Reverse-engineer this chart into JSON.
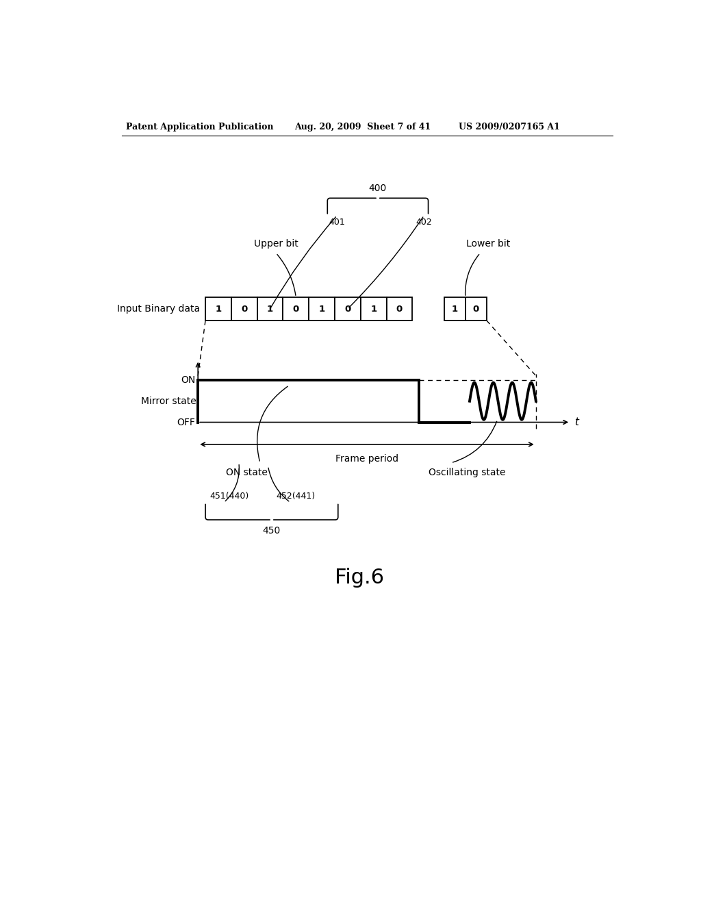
{
  "bg_color": "#ffffff",
  "header_left": "Patent Application Publication",
  "header_mid": "Aug. 20, 2009  Sheet 7 of 41",
  "header_right": "US 2009/0207165 A1",
  "fig_label": "Fig.6",
  "binary_data_upper": [
    "1",
    "0",
    "1",
    "0",
    "1",
    "0",
    "1",
    "0"
  ],
  "binary_data_lower": [
    "1",
    "0"
  ],
  "label_input_binary": "Input Binary data",
  "label_upper_bit": "Upper bit",
  "label_lower_bit": "Lower bit",
  "label_400": "400",
  "label_401": "401",
  "label_402": "402",
  "label_mirror_state": "Mirror state",
  "label_on": "ON",
  "label_off": "OFF",
  "label_t": "t",
  "label_frame_period": "Frame period",
  "label_on_state": "ON state",
  "label_oscillating_state": "Oscillating state",
  "label_451": "451(440)",
  "label_452": "452(441)",
  "label_450": "450"
}
